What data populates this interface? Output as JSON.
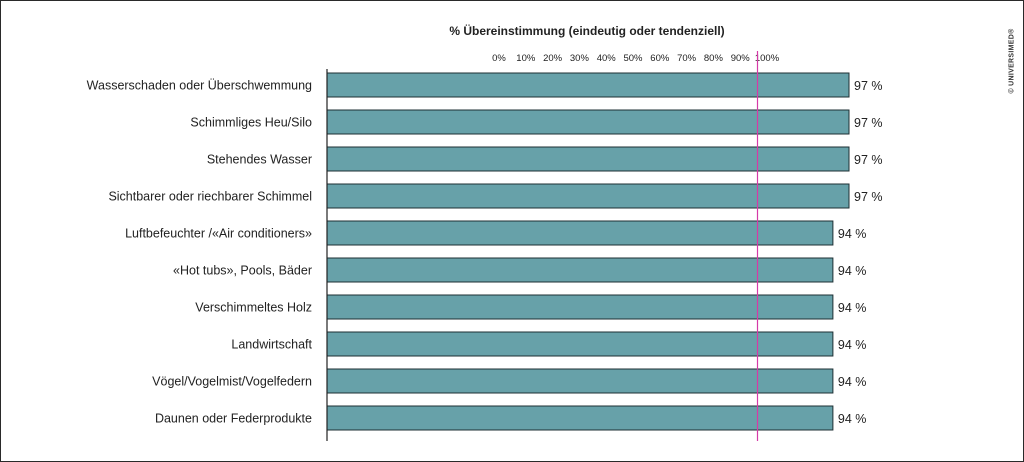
{
  "chart_data": {
    "type": "bar",
    "orientation": "horizontal",
    "title": "% Übereinstimmung (eindeutig oder tendenziell)",
    "categories": [
      "Wasserschaden oder Überschwemmung",
      "Schimmliges Heu/Silo",
      "Stehendes Wasser",
      "Sichtbarer oder riechbarer Schimmel",
      "Luftbefeuchter /«Air conditioners»",
      "«Hot tubs», Pools, Bäder",
      "Verschimmeltes Holz",
      "Landwirtschaft",
      "Vögel/Vogelmist/Vogelfedern",
      "Daunen oder Federprodukte"
    ],
    "values": [
      97,
      97,
      97,
      97,
      94,
      94,
      94,
      94,
      94,
      94
    ],
    "value_labels": [
      "97 %",
      "97 %",
      "97 %",
      "97 %",
      "94 %",
      "94 %",
      "94 %",
      "94 %",
      "94 %",
      "94 %"
    ],
    "ticks": [
      0,
      10,
      20,
      30,
      40,
      50,
      60,
      70,
      80,
      90,
      100
    ],
    "tick_labels": [
      "0%",
      "10%",
      "20%",
      "30%",
      "40%",
      "50%",
      "60%",
      "70%",
      "80%",
      "90%",
      "100%"
    ],
    "reference_line": 80,
    "colors": {
      "bar": "#67a1a9",
      "bar_edge": "#1e2f33",
      "reference_line": "#d63aa8",
      "axis": "#222222"
    }
  },
  "copyright": "© UNIVERSIMED®"
}
